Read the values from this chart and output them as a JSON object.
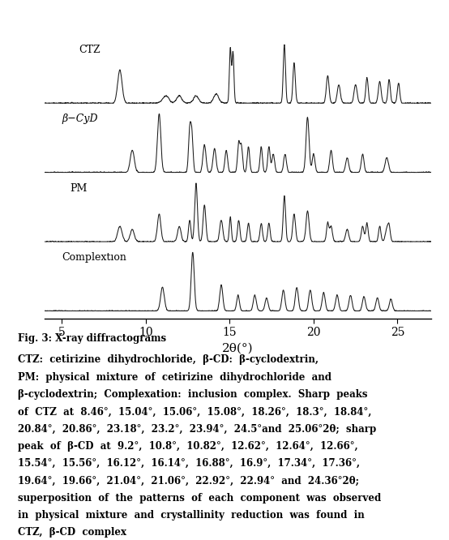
{
  "xlabel": "2θ(°)",
  "xmin": 4,
  "xmax": 27,
  "xticks": [
    5,
    10,
    15,
    20,
    25
  ],
  "labels": [
    "CTZ",
    "β−CyD",
    "PM",
    "Complextıon"
  ],
  "background_color": "#ffffff",
  "line_color": "#1a1a1a",
  "caption_title": "Fig. 3: X-ray diffractograms",
  "caption_body": "CTZ: cetirizine dihydrochloride, β-CD: β-cyclodextrin, PM: physical mixture of cetirizine dihydrochloride and β-cyclodextrin; Complexation: inclusion complex. Sharp peaks of CTZ at 8.46°, 15.04°, 15.06°, 15.08°, 18.26°, 18.3°, 18.84°, 20.84°, 20.86°, 23.18°, 23.2°, 23.94°, 24.5°and 25.06°2θ; sharp peak of β-CD at 9.2°, 10.8°, 10.82°, 12.62°, 12.64°, 12.66°, 15.54°, 15.56°, 16.12°, 16.14°, 16.88°, 16.9°, 17.34°, 17.36°, 19.64°, 19.66°, 21.04°, 21.06°, 22.92°, 22.94° and 24.36°2θ; superposition of the patterns of each component was observed in physical mixture and crystallinity reduction was found in CTZ, β-CD complex"
}
